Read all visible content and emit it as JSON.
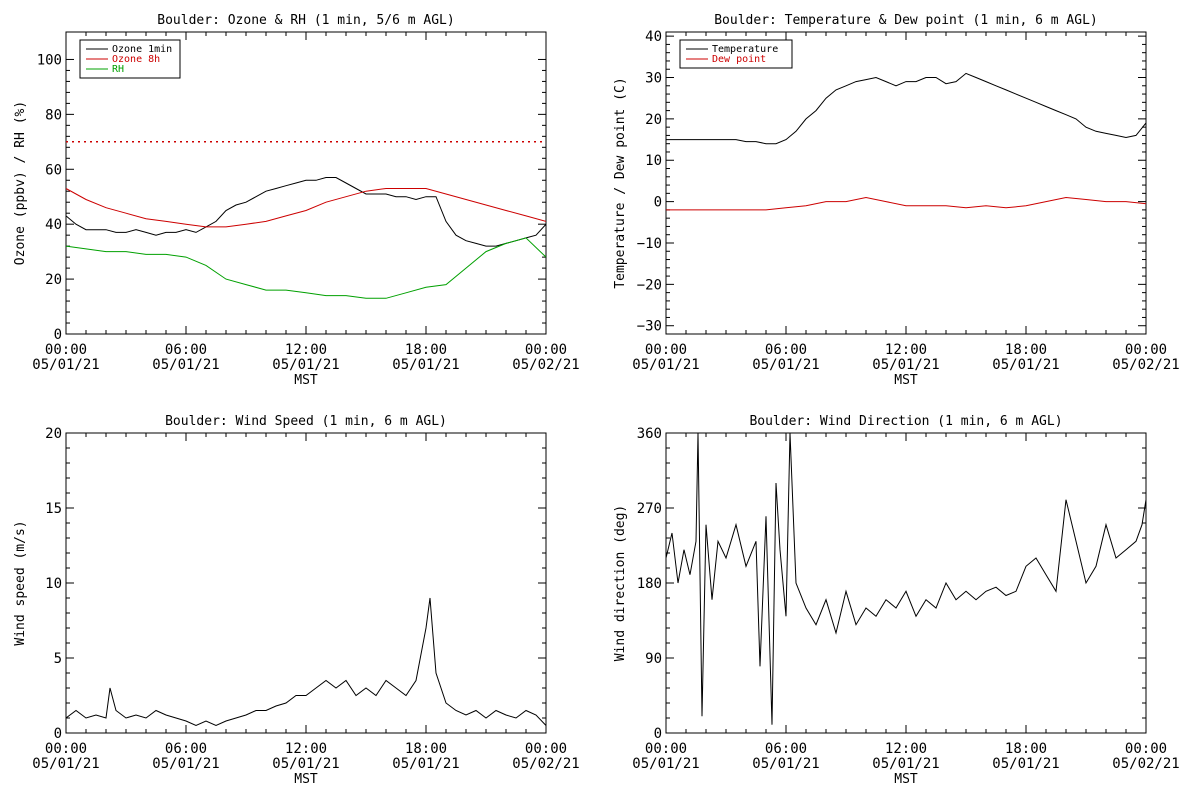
{
  "chart_data": [
    {
      "type": "line",
      "title": "Boulder: Ozone & RH (1 min, 5/6 m AGL)",
      "xlabel": "MST",
      "ylabel": "Ozone (ppbv) / RH (%)",
      "xlim": [
        0,
        24
      ],
      "ylim": [
        0,
        110
      ],
      "x_ticks": [
        0,
        6,
        12,
        18,
        24
      ],
      "x_tick_labels": [
        [
          "00:00",
          "05/01/21"
        ],
        [
          "06:00",
          "05/01/21"
        ],
        [
          "12:00",
          "05/01/21"
        ],
        [
          "18:00",
          "05/01/21"
        ],
        [
          "00:00",
          "05/02/21"
        ]
      ],
      "y_ticks": [
        0,
        20,
        40,
        60,
        80,
        100
      ],
      "y_tick_labels": [
        "0",
        "20",
        "40",
        "60",
        "80",
        "100"
      ],
      "legend_position": "top-left",
      "series": [
        {
          "name": "Ozone 1min",
          "color": "#000000",
          "x": [
            0,
            0.5,
            1,
            1.5,
            2,
            2.5,
            3,
            3.5,
            4,
            4.5,
            5,
            5.5,
            6,
            6.5,
            7,
            7.5,
            8,
            8.5,
            9,
            9.5,
            10,
            10.5,
            11,
            11.5,
            12,
            12.5,
            13,
            13.5,
            14,
            14.5,
            15,
            15.5,
            16,
            16.5,
            17,
            17.5,
            18,
            18.5,
            19,
            19.5,
            20,
            20.5,
            21,
            21.5,
            22,
            22.5,
            23,
            23.5,
            24
          ],
          "values": [
            43,
            40,
            38,
            38,
            38,
            37,
            37,
            38,
            37,
            36,
            37,
            37,
            38,
            37,
            39,
            41,
            45,
            47,
            48,
            50,
            52,
            53,
            54,
            55,
            56,
            56,
            57,
            57,
            55,
            53,
            51,
            51,
            51,
            50,
            50,
            49,
            50,
            50,
            41,
            36,
            34,
            33,
            32,
            32,
            33,
            34,
            35,
            36,
            40
          ]
        },
        {
          "name": "Ozone 8h",
          "color": "#cc0000",
          "x": [
            0,
            1,
            2,
            3,
            4,
            5,
            6,
            7,
            8,
            9,
            10,
            11,
            12,
            13,
            14,
            15,
            16,
            17,
            18,
            19,
            20,
            21,
            22,
            23,
            24
          ],
          "values": [
            53,
            49,
            46,
            44,
            42,
            41,
            40,
            39,
            39,
            40,
            41,
            43,
            45,
            48,
            50,
            52,
            53,
            53,
            53,
            51,
            49,
            47,
            45,
            43,
            41
          ]
        },
        {
          "name": "RH",
          "color": "#00a000",
          "x": [
            0,
            1,
            2,
            3,
            4,
            5,
            6,
            7,
            8,
            9,
            10,
            11,
            12,
            13,
            14,
            15,
            16,
            17,
            18,
            19,
            20,
            21,
            22,
            23,
            24
          ],
          "values": [
            32,
            31,
            30,
            30,
            29,
            29,
            28,
            25,
            20,
            18,
            16,
            16,
            15,
            14,
            14,
            13,
            13,
            15,
            17,
            18,
            24,
            30,
            33,
            35,
            28
          ]
        },
        {
          "name": "",
          "color": "#cc0000",
          "dotted": true,
          "x": [
            0,
            24
          ],
          "values": [
            70,
            70
          ]
        }
      ]
    },
    {
      "type": "line",
      "title": "Boulder: Temperature & Dew point (1 min, 6 m AGL)",
      "xlabel": "MST",
      "ylabel": "Temperature / Dew point (C)",
      "xlim": [
        0,
        24
      ],
      "ylim": [
        -32,
        41
      ],
      "x_ticks": [
        0,
        6,
        12,
        18,
        24
      ],
      "x_tick_labels": [
        [
          "00:00",
          "05/01/21"
        ],
        [
          "06:00",
          "05/01/21"
        ],
        [
          "12:00",
          "05/01/21"
        ],
        [
          "18:00",
          "05/01/21"
        ],
        [
          "00:00",
          "05/02/21"
        ]
      ],
      "y_ticks": [
        -30,
        -20,
        -10,
        0,
        10,
        20,
        30,
        40
      ],
      "y_tick_labels": [
        "−30",
        "−20",
        "−10",
        "0",
        "10",
        "20",
        "30",
        "40"
      ],
      "legend_position": "top-left",
      "series": [
        {
          "name": "Temperature",
          "color": "#000000",
          "x": [
            0,
            0.5,
            1,
            1.5,
            2,
            2.5,
            3,
            3.5,
            4,
            4.5,
            5,
            5.5,
            6,
            6.5,
            7,
            7.5,
            8,
            8.5,
            9,
            9.5,
            10,
            10.5,
            11,
            11.5,
            12,
            12.5,
            13,
            13.5,
            14,
            14.5,
            15,
            15.5,
            16,
            16.5,
            17,
            17.5,
            18,
            18.5,
            19,
            19.5,
            20,
            20.5,
            21,
            21.5,
            22,
            22.5,
            23,
            23.5,
            24
          ],
          "values": [
            15,
            15,
            15,
            15,
            15,
            15,
            15,
            15,
            14.5,
            14.5,
            14,
            14,
            15,
            17,
            20,
            22,
            25,
            27,
            28,
            29,
            29.5,
            30,
            29,
            28,
            29,
            29,
            30,
            30,
            28.5,
            29,
            31,
            30,
            29,
            28,
            27,
            26,
            25,
            24,
            23,
            22,
            21,
            20,
            18,
            17,
            16.5,
            16,
            15.5,
            16,
            19
          ]
        },
        {
          "name": "Dew point",
          "color": "#cc0000",
          "x": [
            0,
            1,
            2,
            3,
            4,
            5,
            6,
            7,
            8,
            9,
            10,
            11,
            12,
            13,
            14,
            15,
            16,
            17,
            18,
            19,
            20,
            21,
            22,
            23,
            24
          ],
          "values": [
            -2,
            -2,
            -2,
            -2,
            -2,
            -2,
            -1.5,
            -1,
            0,
            0,
            1,
            0,
            -1,
            -1,
            -1,
            -1.5,
            -1,
            -1.5,
            -1,
            0,
            1,
            0.5,
            0,
            0,
            -0.5
          ]
        }
      ]
    },
    {
      "type": "line",
      "title": "Boulder: Wind Speed (1 min, 6 m AGL)",
      "xlabel": "MST",
      "ylabel": "Wind speed (m/s)",
      "xlim": [
        0,
        24
      ],
      "ylim": [
        0,
        20
      ],
      "x_ticks": [
        0,
        6,
        12,
        18,
        24
      ],
      "x_tick_labels": [
        [
          "00:00",
          "05/01/21"
        ],
        [
          "06:00",
          "05/01/21"
        ],
        [
          "12:00",
          "05/01/21"
        ],
        [
          "18:00",
          "05/01/21"
        ],
        [
          "00:00",
          "05/02/21"
        ]
      ],
      "y_ticks": [
        0,
        5,
        10,
        15,
        20
      ],
      "y_tick_labels": [
        "0",
        "5",
        "10",
        "15",
        "20"
      ],
      "series": [
        {
          "name": "",
          "color": "#000000",
          "x": [
            0,
            0.5,
            1,
            1.5,
            2,
            2.2,
            2.5,
            3,
            3.5,
            4,
            4.5,
            5,
            5.5,
            6,
            6.5,
            7,
            7.5,
            8,
            8.5,
            9,
            9.5,
            10,
            10.5,
            11,
            11.5,
            12,
            12.5,
            13,
            13.5,
            14,
            14.5,
            15,
            15.5,
            16,
            16.5,
            17,
            17.5,
            18,
            18.2,
            18.5,
            19,
            19.5,
            20,
            20.5,
            21,
            21.5,
            22,
            22.5,
            23,
            23.5,
            24
          ],
          "values": [
            1,
            1.5,
            1,
            1.2,
            1,
            3,
            1.5,
            1,
            1.2,
            1,
            1.5,
            1.2,
            1,
            0.8,
            0.5,
            0.8,
            0.5,
            0.8,
            1,
            1.2,
            1.5,
            1.5,
            1.8,
            2,
            2.5,
            2.5,
            3,
            3.5,
            3,
            3.5,
            2.5,
            3,
            2.5,
            3.5,
            3,
            2.5,
            3.5,
            7,
            9,
            4,
            2,
            1.5,
            1.2,
            1.5,
            1,
            1.5,
            1.2,
            1,
            1.5,
            1.2,
            0.5
          ]
        }
      ]
    },
    {
      "type": "line",
      "title": "Boulder: Wind Direction (1 min, 6 m AGL)",
      "xlabel": "MST",
      "ylabel": "Wind direction (deg)",
      "xlim": [
        0,
        24
      ],
      "ylim": [
        0,
        360
      ],
      "x_ticks": [
        0,
        6,
        12,
        18,
        24
      ],
      "x_tick_labels": [
        [
          "00:00",
          "05/01/21"
        ],
        [
          "06:00",
          "05/01/21"
        ],
        [
          "12:00",
          "05/01/21"
        ],
        [
          "18:00",
          "05/01/21"
        ],
        [
          "00:00",
          "05/02/21"
        ]
      ],
      "y_ticks": [
        0,
        90,
        180,
        270,
        360
      ],
      "y_tick_labels": [
        "0",
        "90",
        "180",
        "270",
        "360"
      ],
      "series": [
        {
          "name": "",
          "color": "#000000",
          "x": [
            0,
            0.3,
            0.6,
            0.9,
            1.2,
            1.5,
            1.6,
            1.8,
            2,
            2.3,
            2.6,
            3,
            3.5,
            4,
            4.5,
            4.7,
            5,
            5.3,
            5.5,
            5.7,
            6,
            6.2,
            6.5,
            7,
            7.5,
            8,
            8.5,
            9,
            9.5,
            10,
            10.5,
            11,
            11.5,
            12,
            12.5,
            13,
            13.5,
            14,
            14.5,
            15,
            15.5,
            16,
            16.5,
            17,
            17.5,
            18,
            18.5,
            19,
            19.5,
            20,
            20.5,
            21,
            21.5,
            22,
            22.5,
            23,
            23.5,
            23.8,
            24
          ],
          "values": [
            210,
            240,
            180,
            220,
            190,
            230,
            360,
            20,
            250,
            160,
            230,
            210,
            250,
            200,
            230,
            80,
            260,
            10,
            300,
            220,
            140,
            360,
            180,
            150,
            130,
            160,
            120,
            170,
            130,
            150,
            140,
            160,
            150,
            170,
            140,
            160,
            150,
            180,
            160,
            170,
            160,
            170,
            175,
            165,
            170,
            200,
            210,
            190,
            170,
            280,
            230,
            180,
            200,
            250,
            210,
            220,
            230,
            250,
            280
          ]
        }
      ]
    }
  ]
}
